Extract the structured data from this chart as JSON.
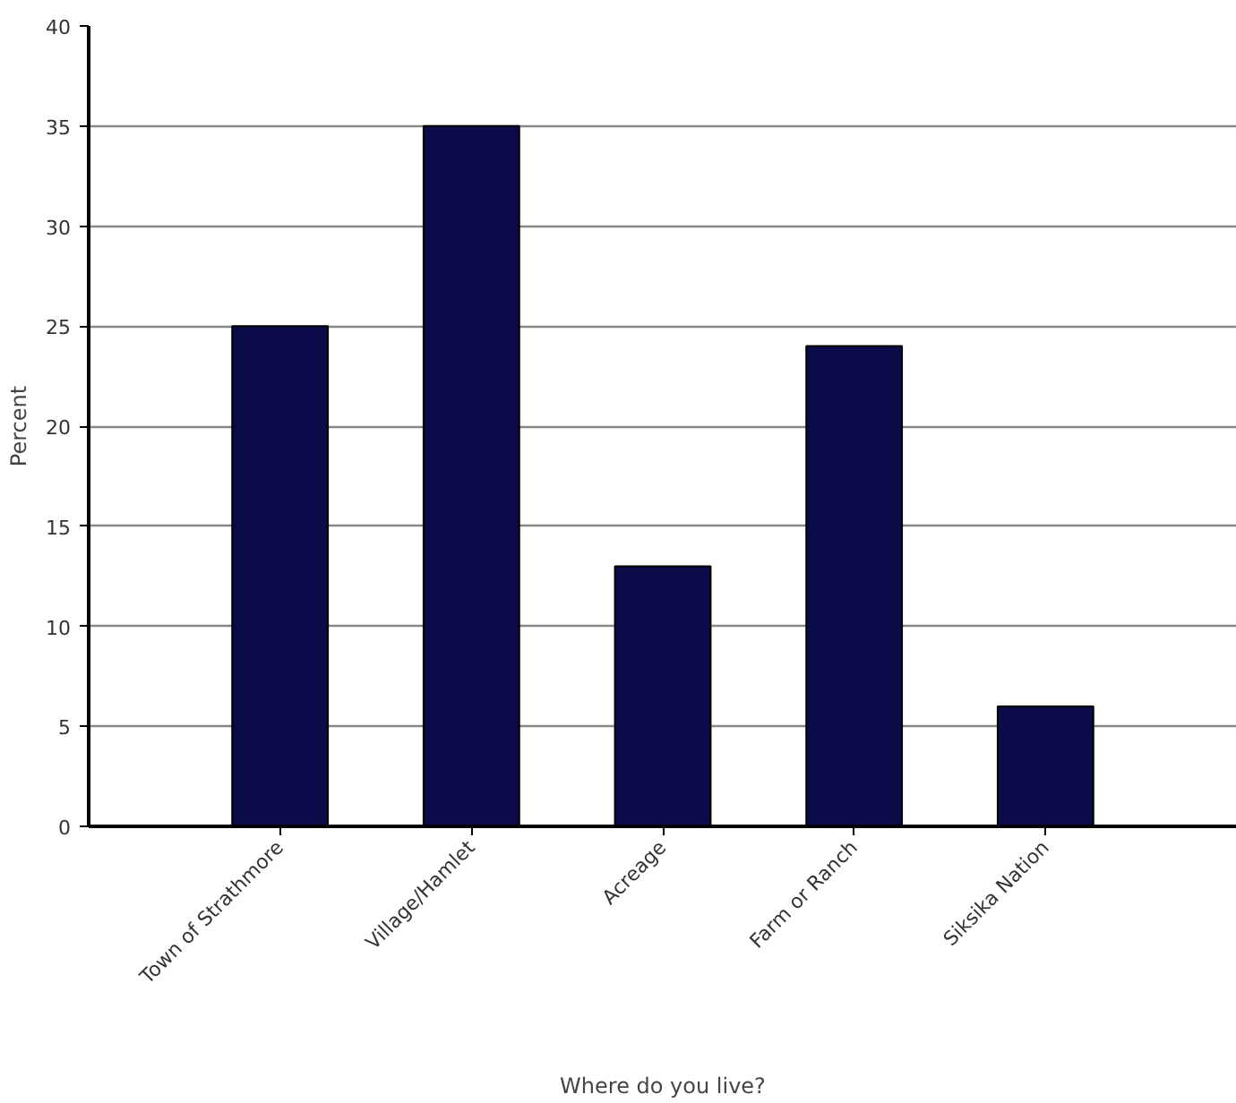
{
  "chart_data": {
    "type": "bar",
    "xlabel": "Where do you live?",
    "ylabel": "Percent",
    "categories": [
      "Town of Strathmore",
      "Village/Hamlet",
      "Acreage",
      "Farm or Ranch",
      "Siksika Nation"
    ],
    "values": [
      25,
      35,
      13,
      24,
      6
    ],
    "color": "#0b0b4a",
    "ylim": [
      0,
      40
    ],
    "yticks": [
      0,
      5,
      10,
      15,
      20,
      25,
      30,
      35,
      40
    ],
    "grid": "y"
  }
}
